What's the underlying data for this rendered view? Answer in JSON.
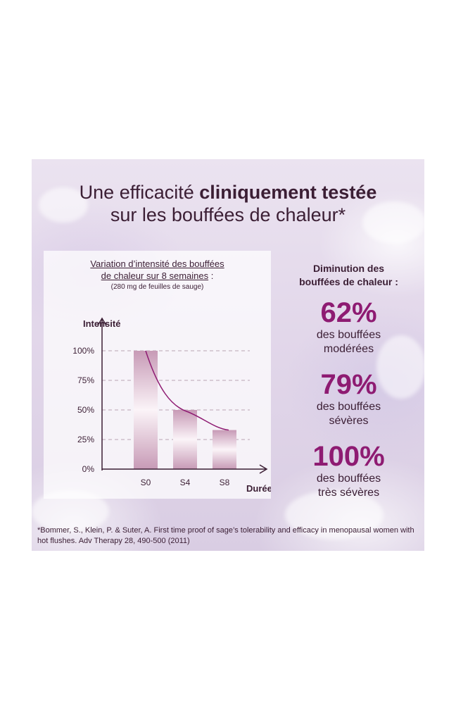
{
  "headline": {
    "line1_regular": "Une efficacité ",
    "line1_bold": "cliniquement testée",
    "line2": "sur les bouffées de chaleur*"
  },
  "chart_data": {
    "type": "bar",
    "title_line1": "Variation d’intensité des bouffées",
    "title_line2": "de chaleur sur 8 semaines",
    "title_suffix": " :",
    "subtitle": "(280 mg de feuilles de sauge)",
    "ylabel": "Intensité",
    "xlabel": "Durée",
    "categories": [
      "S0",
      "S4",
      "S8"
    ],
    "values": [
      100,
      50,
      33
    ],
    "yticks": [
      "100%",
      "75%",
      "50%",
      "25%",
      "0%"
    ],
    "ytick_values": [
      100,
      75,
      50,
      25,
      0
    ],
    "ylim": [
      0,
      100
    ],
    "grid": "dashed-horizontal",
    "trend_curve": true,
    "colors": {
      "bar": "#c79ab6",
      "bar_light": "#fbf4f8",
      "curve": "#8e1b72",
      "axis": "#3b1e34",
      "grid": "#b9a6b4"
    }
  },
  "side": {
    "heading_line1": "Diminution des",
    "heading_line2": "bouffées de chaleur :",
    "stats": [
      {
        "value": "62%",
        "line1": "des bouffées",
        "line2": "modérées"
      },
      {
        "value": "79%",
        "line1": "des bouffées",
        "line2": "sévères"
      },
      {
        "value": "100%",
        "line1": "des bouffées",
        "line2": "très sévères"
      }
    ]
  },
  "footnote": "*Bommer, S., Klein, P. & Suter, A. First time proof of sage’s tolerability and efficacy in menopausal women with hot flushes. Adv Therapy 28, 490-500 (2011)"
}
